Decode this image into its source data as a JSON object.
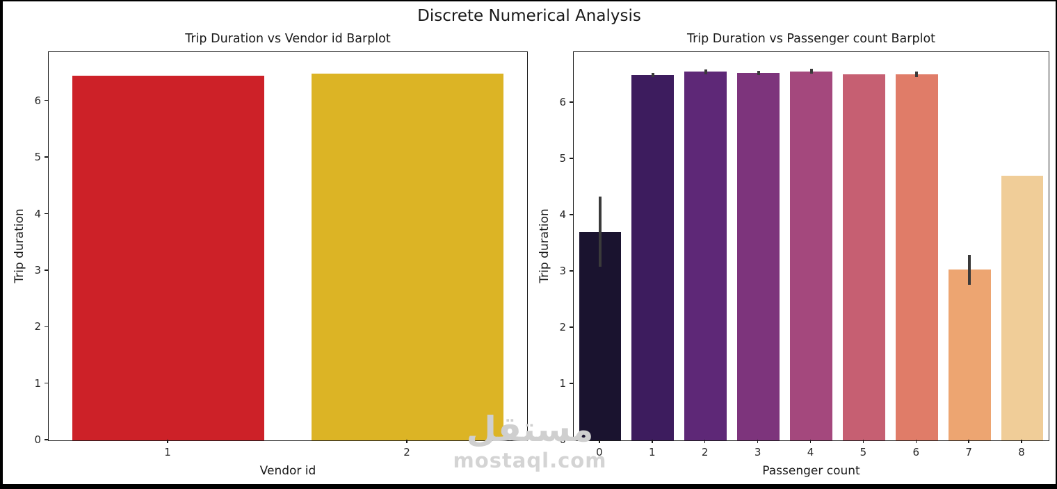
{
  "figure": {
    "suptitle": "Discrete Numerical Analysis",
    "background_color": "#ffffff",
    "frame_color": "#000000",
    "text_color": "#1a1a1a",
    "error_bar_color": "#3a3a3a"
  },
  "watermark": {
    "arabic_text": "مستقل",
    "site_text": "mostaql.com",
    "color": "#cfcfcf"
  },
  "chart_data": [
    {
      "type": "bar",
      "title": "Trip Duration vs Vendor id Barplot",
      "xlabel": "Vendor id",
      "ylabel": "Trip duration",
      "categories": [
        "1",
        "2"
      ],
      "values": [
        6.45,
        6.49
      ],
      "errors": [
        null,
        null
      ],
      "bar_colors": [
        "#cd2128",
        "#dcb425"
      ],
      "ylim": [
        0,
        6.87
      ],
      "yticks": [
        0,
        1,
        2,
        3,
        4,
        5,
        6
      ],
      "grid": false,
      "legend": null
    },
    {
      "type": "bar",
      "title": "Trip Duration vs Passenger count Barplot",
      "xlabel": "Passenger count",
      "ylabel": "Trip duration",
      "categories": [
        "0",
        "1",
        "2",
        "3",
        "4",
        "5",
        "6",
        "7",
        "8"
      ],
      "values": [
        3.7,
        6.49,
        6.55,
        6.53,
        6.56,
        6.51,
        6.5,
        3.04,
        4.7
      ],
      "errors": [
        [
          3.09,
          4.33
        ],
        [
          6.45,
          6.53
        ],
        [
          6.51,
          6.59
        ],
        [
          6.49,
          6.57
        ],
        [
          6.52,
          6.6
        ],
        null,
        [
          6.45,
          6.55
        ],
        [
          2.76,
          3.3
        ],
        null
      ],
      "bar_colors": [
        "#1a132f",
        "#3d1c5e",
        "#5e2877",
        "#7d347c",
        "#a4487d",
        "#c65f72",
        "#e07c68",
        "#eda571",
        "#f0cd98"
      ],
      "ylim": [
        0,
        6.9
      ],
      "yticks": [
        0,
        1,
        2,
        3,
        4,
        5,
        6
      ],
      "grid": false,
      "legend": null
    }
  ]
}
